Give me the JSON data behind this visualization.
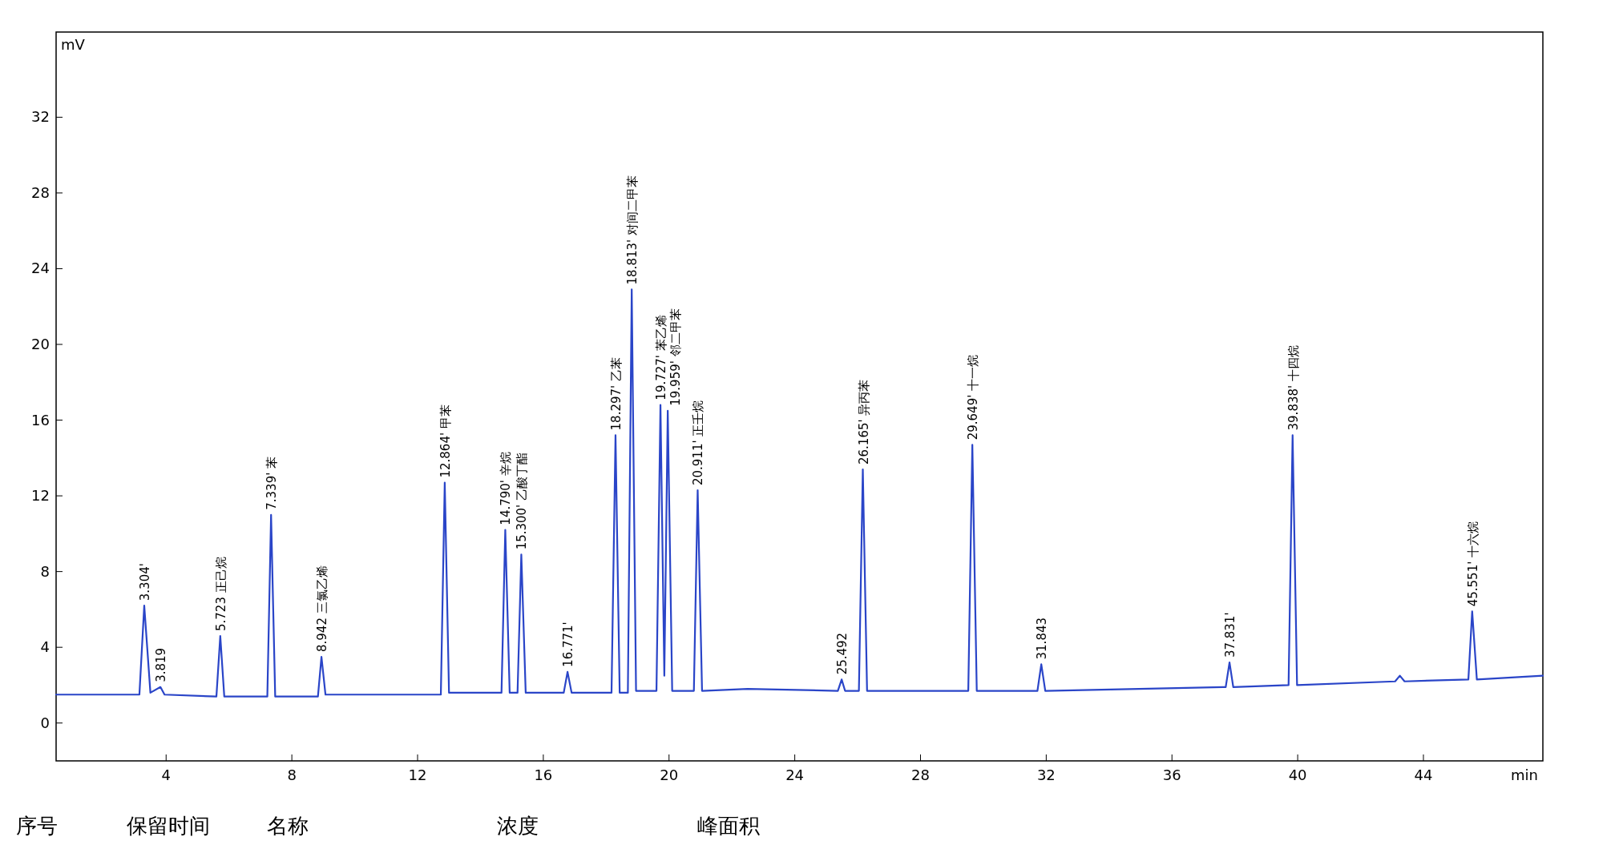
{
  "chart_data": {
    "type": "line",
    "xlabel": "min",
    "ylabel": "mV",
    "xlim": [
      0.5,
      47.8
    ],
    "ylim": [
      -2,
      36.5
    ],
    "xticks": [
      4,
      8,
      12,
      16,
      20,
      24,
      28,
      32,
      36,
      40,
      44
    ],
    "yticks": [
      0,
      4,
      8,
      12,
      16,
      20,
      24,
      28,
      32
    ],
    "series": [
      {
        "color": "#2a45c8",
        "x": [
          0.5,
          3.15,
          3.304,
          3.5,
          3.819,
          3.95,
          5.6,
          5.723,
          5.85,
          7.22,
          7.339,
          7.47,
          8.83,
          8.942,
          9.07,
          12.74,
          12.864,
          13.0,
          14.67,
          14.79,
          14.93,
          15.18,
          15.3,
          15.44,
          16.65,
          16.771,
          16.9,
          18.17,
          18.297,
          18.43,
          18.69,
          18.813,
          18.95,
          19.6,
          19.727,
          19.85,
          19.959,
          20.1,
          20.79,
          20.911,
          21.05,
          22.5,
          25.37,
          25.492,
          25.6,
          26.04,
          26.165,
          26.3,
          29.52,
          29.649,
          29.79,
          31.72,
          31.843,
          31.97,
          37.71,
          37.831,
          37.95,
          39.71,
          39.838,
          39.98,
          43.1,
          43.25,
          43.4,
          45.43,
          45.551,
          45.7,
          47.8
        ],
        "values": [
          1.5,
          1.5,
          6.2,
          1.6,
          1.9,
          1.5,
          1.4,
          4.6,
          1.4,
          1.4,
          11.0,
          1.4,
          1.4,
          3.5,
          1.5,
          1.5,
          12.7,
          1.6,
          1.6,
          10.2,
          1.6,
          1.6,
          8.9,
          1.6,
          1.6,
          2.7,
          1.6,
          1.6,
          15.2,
          1.6,
          1.6,
          22.9,
          1.7,
          1.7,
          16.8,
          2.5,
          16.5,
          1.7,
          1.7,
          12.3,
          1.7,
          1.8,
          1.7,
          2.3,
          1.7,
          1.7,
          13.4,
          1.7,
          1.7,
          14.7,
          1.7,
          1.7,
          3.1,
          1.7,
          1.9,
          3.2,
          1.9,
          2.0,
          15.2,
          2.0,
          2.2,
          2.5,
          2.2,
          2.3,
          5.9,
          2.3,
          2.5
        ]
      }
    ],
    "annotations": [
      {
        "text": "3.304'",
        "x": 3.304,
        "y": 6.2
      },
      {
        "text": "3.819",
        "x": 3.819,
        "y": 1.9
      },
      {
        "text": "5.723 正己烷",
        "x": 5.723,
        "y": 4.6
      },
      {
        "text": "7.339' 苯",
        "x": 7.339,
        "y": 11.0
      },
      {
        "text": "8.942 三氯乙烯",
        "x": 8.942,
        "y": 3.5
      },
      {
        "text": "12.864' 甲苯",
        "x": 12.864,
        "y": 12.7
      },
      {
        "text": "14.790' 辛烷",
        "x": 14.79,
        "y": 10.2
      },
      {
        "text": "15.300' 乙酸丁酯",
        "x": 15.3,
        "y": 8.9
      },
      {
        "text": "16.771'",
        "x": 16.771,
        "y": 2.7
      },
      {
        "text": "18.297' 乙苯",
        "x": 18.297,
        "y": 15.2
      },
      {
        "text": "18.813' 对间二甲苯",
        "x": 18.813,
        "y": 22.9
      },
      {
        "text": "19.727' 苯乙烯",
        "x": 19.727,
        "y": 16.8
      },
      {
        "text": "19.959' 邻二甲苯",
        "x": 19.959,
        "y": 16.5
      },
      {
        "text": "20.911' 正壬烷",
        "x": 20.911,
        "y": 12.3
      },
      {
        "text": "25.492",
        "x": 25.492,
        "y": 2.3
      },
      {
        "text": "26.165' 异丙苯",
        "x": 26.165,
        "y": 13.4
      },
      {
        "text": "29.649' 十一烷",
        "x": 29.649,
        "y": 14.7
      },
      {
        "text": "31.843",
        "x": 31.843,
        "y": 3.1
      },
      {
        "text": "37.831'",
        "x": 37.831,
        "y": 3.2
      },
      {
        "text": "39.838' 十四烷",
        "x": 39.838,
        "y": 15.2
      },
      {
        "text": "45.551' 十六烷",
        "x": 45.551,
        "y": 5.9
      },
      "序号",
      "保留时间",
      "名称",
      "浓度",
      "峰面积"
    ]
  }
}
